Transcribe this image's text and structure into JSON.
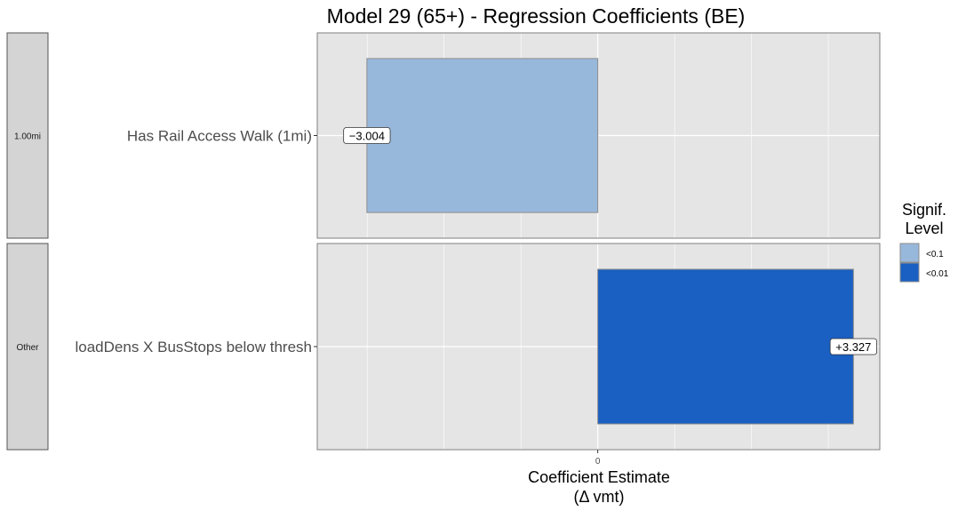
{
  "chart_data": {
    "type": "bar",
    "orientation": "horizontal",
    "title": "Model 29 (65+) - Regression Coefficients (BE)",
    "xlabel": [
      "Coefficient Estimate",
      "(Δ vmt)"
    ],
    "ylabel": "",
    "xlim": [
      -3.65,
      3.67
    ],
    "x_ticks": [
      {
        "value": 0,
        "label": "0"
      }
    ],
    "x_minor_gridlines": [
      -3,
      -2,
      -1,
      1,
      2,
      3
    ],
    "grid": true,
    "facets": [
      {
        "strip_label": "1.00mi",
        "category": "Has Rail Access Walk (1mi)",
        "value": -3.004,
        "value_label": "−3.004",
        "signif": "<0.1"
      },
      {
        "strip_label": "Other",
        "category": "loadDens X BusStops below thresh",
        "value": 3.327,
        "value_label": "+3.327",
        "signif": "<0.01"
      }
    ],
    "legend": {
      "title": [
        "Signif.",
        "Level"
      ],
      "position": "right",
      "entries": [
        {
          "label": "<0.1",
          "color": "#98b8db"
        },
        {
          "label": "<0.01",
          "color": "#1a5fc2"
        }
      ]
    },
    "colors": {
      "panel_bg": "#e5e5e5",
      "strip_bg": "#d4d4d4",
      "gridline": "#ffffff",
      "bar_border": "#8c8c8c"
    }
  }
}
